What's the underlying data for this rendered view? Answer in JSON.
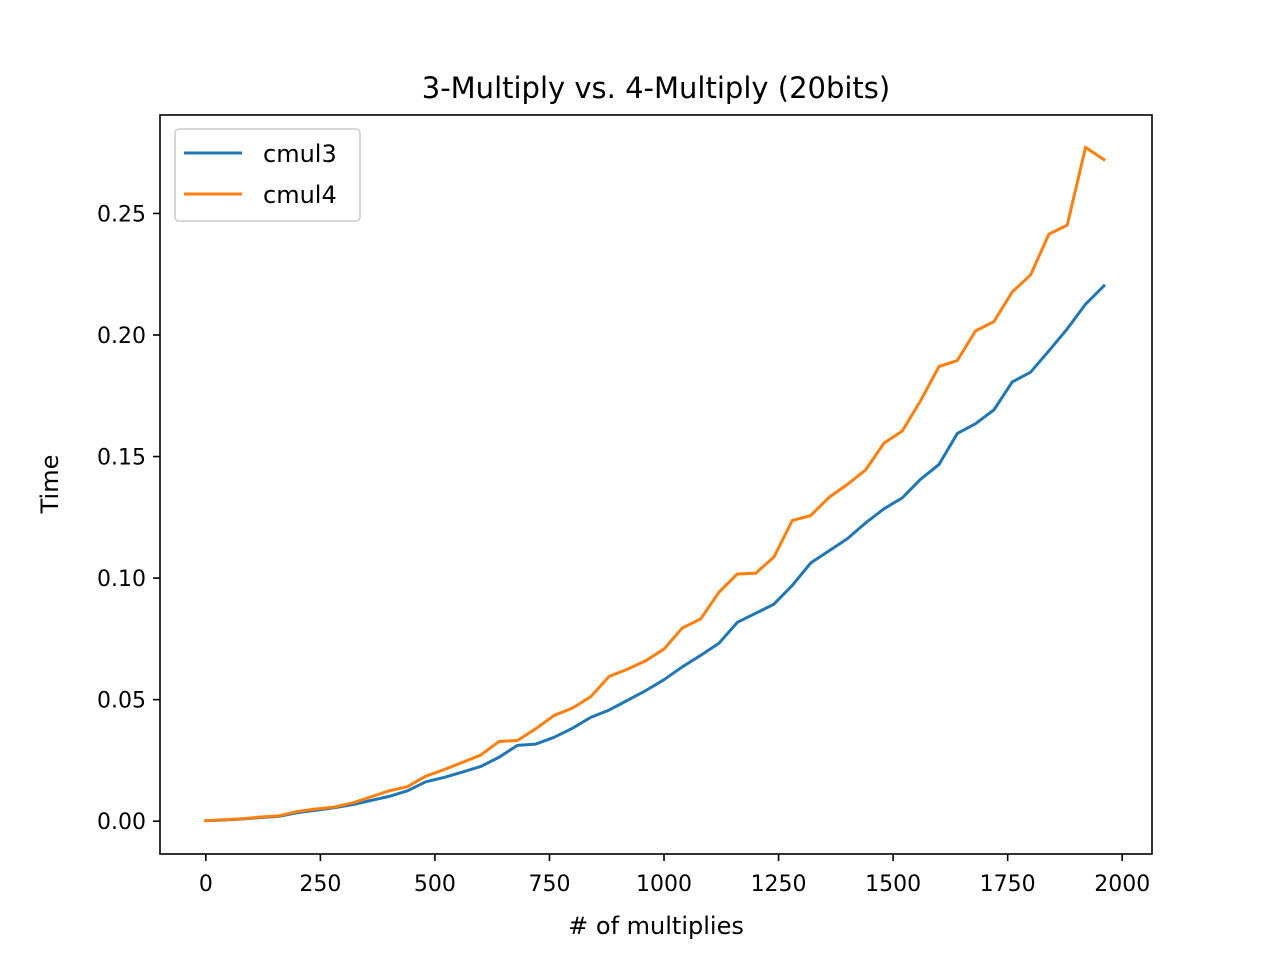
{
  "chart_data": {
    "type": "line",
    "title": "3-Multiply vs. 4-Multiply (20bits)",
    "xlabel": "# of multiplies",
    "ylabel": "Time",
    "xlim": [
      -100,
      2065
    ],
    "ylim": [
      -0.0135,
      0.2905
    ],
    "xticks": [
      0,
      250,
      500,
      750,
      1000,
      1250,
      1500,
      1750,
      2000
    ],
    "xtick_labels": [
      "0",
      "250",
      "500",
      "750",
      "1000",
      "1250",
      "1500",
      "1750",
      "2000"
    ],
    "yticks": [
      0.0,
      0.05,
      0.1,
      0.15,
      0.2,
      0.25
    ],
    "ytick_labels": [
      "0.00",
      "0.05",
      "0.10",
      "0.15",
      "0.20",
      "0.25"
    ],
    "grid": false,
    "legend_position": "top-left",
    "x": [
      0,
      40,
      80,
      120,
      160,
      200,
      240,
      280,
      320,
      360,
      400,
      440,
      480,
      520,
      560,
      600,
      640,
      680,
      720,
      760,
      800,
      840,
      880,
      920,
      960,
      1000,
      1040,
      1080,
      1120,
      1160,
      1200,
      1240,
      1280,
      1320,
      1360,
      1400,
      1440,
      1480,
      1520,
      1560,
      1600,
      1640,
      1680,
      1720,
      1760,
      1800,
      1840,
      1880,
      1920,
      1960
    ],
    "series": [
      {
        "name": "cmul3",
        "color": "#1f77b4",
        "values": [
          0.0002,
          0.0005,
          0.0009,
          0.0015,
          0.002,
          0.0035,
          0.0045,
          0.0055,
          0.0068,
          0.0085,
          0.0102,
          0.0125,
          0.0162,
          0.018,
          0.0202,
          0.0225,
          0.0263,
          0.0312,
          0.0317,
          0.0345,
          0.0382,
          0.0427,
          0.0457,
          0.0497,
          0.0537,
          0.0582,
          0.0635,
          0.0682,
          0.0732,
          0.0818,
          0.0855,
          0.0893,
          0.097,
          0.1062,
          0.1112,
          0.1162,
          0.1227,
          0.1285,
          0.133,
          0.1407,
          0.1467,
          0.1595,
          0.1635,
          0.1692,
          0.1807,
          0.1847,
          0.1935,
          0.2025,
          0.2127,
          0.2202
        ]
      },
      {
        "name": "cmul4",
        "color": "#ff7f0e",
        "values": [
          0.0002,
          0.0006,
          0.001,
          0.0017,
          0.0022,
          0.004,
          0.005,
          0.0058,
          0.0075,
          0.01,
          0.0125,
          0.0142,
          0.0185,
          0.0212,
          0.0242,
          0.0272,
          0.0328,
          0.0332,
          0.038,
          0.0435,
          0.0465,
          0.0512,
          0.0595,
          0.0625,
          0.066,
          0.0708,
          0.0795,
          0.0832,
          0.0942,
          0.1017,
          0.102,
          0.1087,
          0.1237,
          0.1257,
          0.1332,
          0.1385,
          0.1445,
          0.1555,
          0.1605,
          0.173,
          0.187,
          0.1895,
          0.2017,
          0.2055,
          0.2177,
          0.2247,
          0.2415,
          0.2452,
          0.2772,
          0.2722
        ]
      }
    ]
  }
}
